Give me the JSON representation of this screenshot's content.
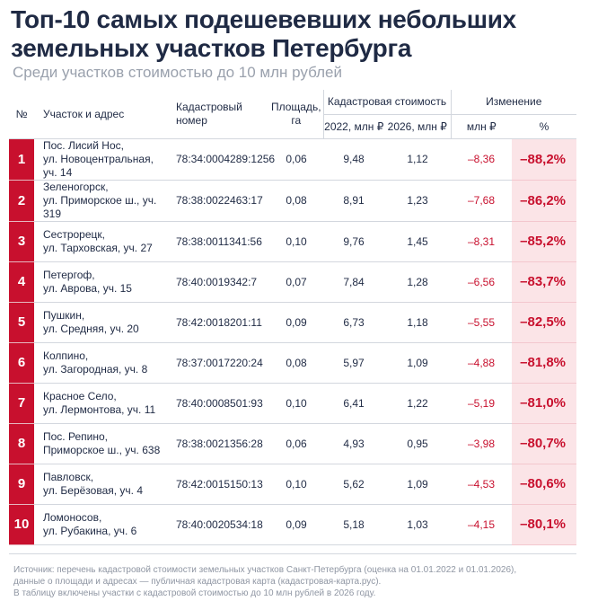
{
  "title": "Топ-10 самых подешевевших небольших земельных участков Петербурга",
  "subtitle": "Среди участков стоимостью до 10 млн рублей",
  "headers": {
    "num": "№",
    "address": "Участок и адрес",
    "cadastral_line1": "Кадастровый",
    "cadastral_line2": "номер",
    "area_line1": "Площадь,",
    "area_line2": "га",
    "value_group": "Кадастровая стоимость",
    "value_2022": "2022, млн ₽",
    "value_2026": "2026, млн ₽",
    "change_group": "Изменение",
    "change_mln": "млн ₽",
    "change_pct": "%"
  },
  "rows": [
    {
      "num": "1",
      "addr1": "Пос. Лисий Нос,",
      "addr2": "ул. Новоцентральная, уч. 14",
      "cad": "78:34:0004289:1256",
      "area": "0,06",
      "v2022": "9,48",
      "v2026": "1,12",
      "dmln": "–8,36",
      "dpct": "–88,2%"
    },
    {
      "num": "2",
      "addr1": "Зеленогорск,",
      "addr2": "ул. Приморское ш., уч. 319",
      "cad": "78:38:0022463:17",
      "area": "0,08",
      "v2022": "8,91",
      "v2026": "1,23",
      "dmln": "–7,68",
      "dpct": "–86,2%"
    },
    {
      "num": "3",
      "addr1": "Сестрорецк,",
      "addr2": "ул. Тарховская, уч. 27",
      "cad": "78:38:0011341:56",
      "area": "0,10",
      "v2022": "9,76",
      "v2026": "1,45",
      "dmln": "–8,31",
      "dpct": "–85,2%"
    },
    {
      "num": "4",
      "addr1": "Петергоф,",
      "addr2": "ул. Аврова, уч. 15",
      "cad": "78:40:0019342:7",
      "area": "0,07",
      "v2022": "7,84",
      "v2026": "1,28",
      "dmln": "–6,56",
      "dpct": "–83,7%"
    },
    {
      "num": "5",
      "addr1": "Пушкин,",
      "addr2": "ул. Средняя, уч. 20",
      "cad": "78:42:0018201:11",
      "area": "0,09",
      "v2022": "6,73",
      "v2026": "1,18",
      "dmln": "–5,55",
      "dpct": "–82,5%"
    },
    {
      "num": "6",
      "addr1": "Колпино,",
      "addr2": "ул. Загородная, уч. 8",
      "cad": "78:37:0017220:24",
      "area": "0,08",
      "v2022": "5,97",
      "v2026": "1,09",
      "dmln": "–4,88",
      "dpct": "–81,8%"
    },
    {
      "num": "7",
      "addr1": "Красное Село,",
      "addr2": "ул. Лермонтова, уч. 11",
      "cad": "78:40:0008501:93",
      "area": "0,10",
      "v2022": "6,41",
      "v2026": "1,22",
      "dmln": "–5,19",
      "dpct": "–81,0%"
    },
    {
      "num": "8",
      "addr1": "Пос. Репино,",
      "addr2": "Приморское ш., уч. 638",
      "cad": "78:38:0021356:28",
      "area": "0,06",
      "v2022": "4,93",
      "v2026": "0,95",
      "dmln": "–3,98",
      "dpct": "–80,7%"
    },
    {
      "num": "9",
      "addr1": "Павловск,",
      "addr2": "ул. Берёзовая, уч. 4",
      "cad": "78:42:0015150:13",
      "area": "0,10",
      "v2022": "5,62",
      "v2026": "1,09",
      "dmln": "–4,53",
      "dpct": "–80,6%"
    },
    {
      "num": "10",
      "addr1": "Ломоносов,",
      "addr2": "ул. Рубакина, уч. 6",
      "cad": "78:40:0020534:18",
      "area": "0,09",
      "v2022": "5,18",
      "v2026": "1,03",
      "dmln": "–4,15",
      "dpct": "–80,1%"
    }
  ],
  "footer": {
    "line1": "Источник: перечень кадастровой стоимости земельных участков Санкт-Петербурга (оценка на 01.01.2022 и 01.01.2026),",
    "line2": "данные о площади и адресах — публичная кадастровая карта (кадастровая-карта.рус).",
    "line3": "В таблицу включены участки с кадастровой стоимостью до 10 млн рублей в 2026 году."
  },
  "colors": {
    "accent": "#c8102e",
    "accent_light": "#fbe4e7",
    "text": "#1f2a44",
    "muted": "#9aa1ad"
  }
}
